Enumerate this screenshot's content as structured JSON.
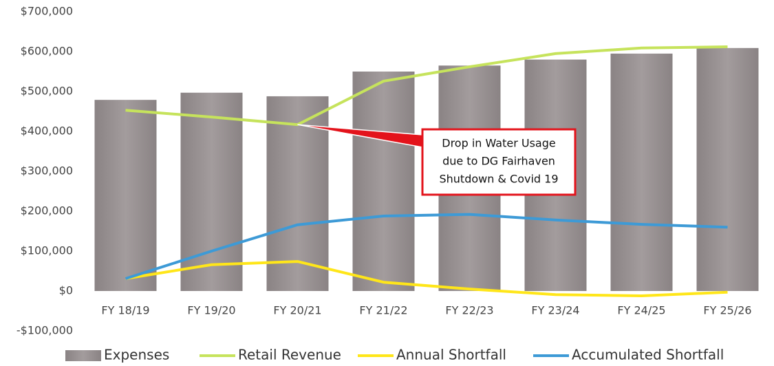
{
  "chart_data": {
    "type": "bar_line",
    "categories": [
      "FY 18/19",
      "FY 19/20",
      "FY 20/21",
      "FY 21/22",
      "FY 22/23",
      "FY 23/24",
      "FY 24/25",
      "FY 25/26"
    ],
    "series": [
      {
        "name": "Expenses",
        "type": "bar",
        "color": "#9a9394",
        "values": [
          479000,
          497000,
          488000,
          550000,
          565000,
          580000,
          595000,
          609000
        ]
      },
      {
        "name": "Retail Revenue",
        "type": "line",
        "color": "#c6e35c",
        "values": [
          453000,
          436000,
          417000,
          526000,
          562000,
          595000,
          609000,
          612000
        ]
      },
      {
        "name": "Annual Shortfall",
        "type": "line",
        "color": "#ffe619",
        "values": [
          31000,
          66000,
          74000,
          22000,
          5000,
          -9000,
          -12000,
          -3000
        ]
      },
      {
        "name": "Accumulated Shortfall",
        "type": "line",
        "color": "#3d9ad6",
        "values": [
          31000,
          100000,
          166000,
          188000,
          192000,
          178000,
          167000,
          160000
        ]
      }
    ],
    "ylim": [
      -100000,
      700000
    ],
    "yticks": [
      {
        "value": -100000,
        "label": "-$100,000"
      },
      {
        "value": 0,
        "label": "$0"
      },
      {
        "value": 100000,
        "label": "$100,000"
      },
      {
        "value": 200000,
        "label": "$200,000"
      },
      {
        "value": 300000,
        "label": "$300,000"
      },
      {
        "value": 400000,
        "label": "$400,000"
      },
      {
        "value": 500000,
        "label": "$500,000"
      },
      {
        "value": 600000,
        "label": "$600,000"
      },
      {
        "value": 700000,
        "label": "$700,000"
      }
    ],
    "annotation": [
      "Drop in Water Usage",
      "due to DG Fairhaven",
      "Shutdown & Covid 19"
    ],
    "legend": "bottom"
  }
}
